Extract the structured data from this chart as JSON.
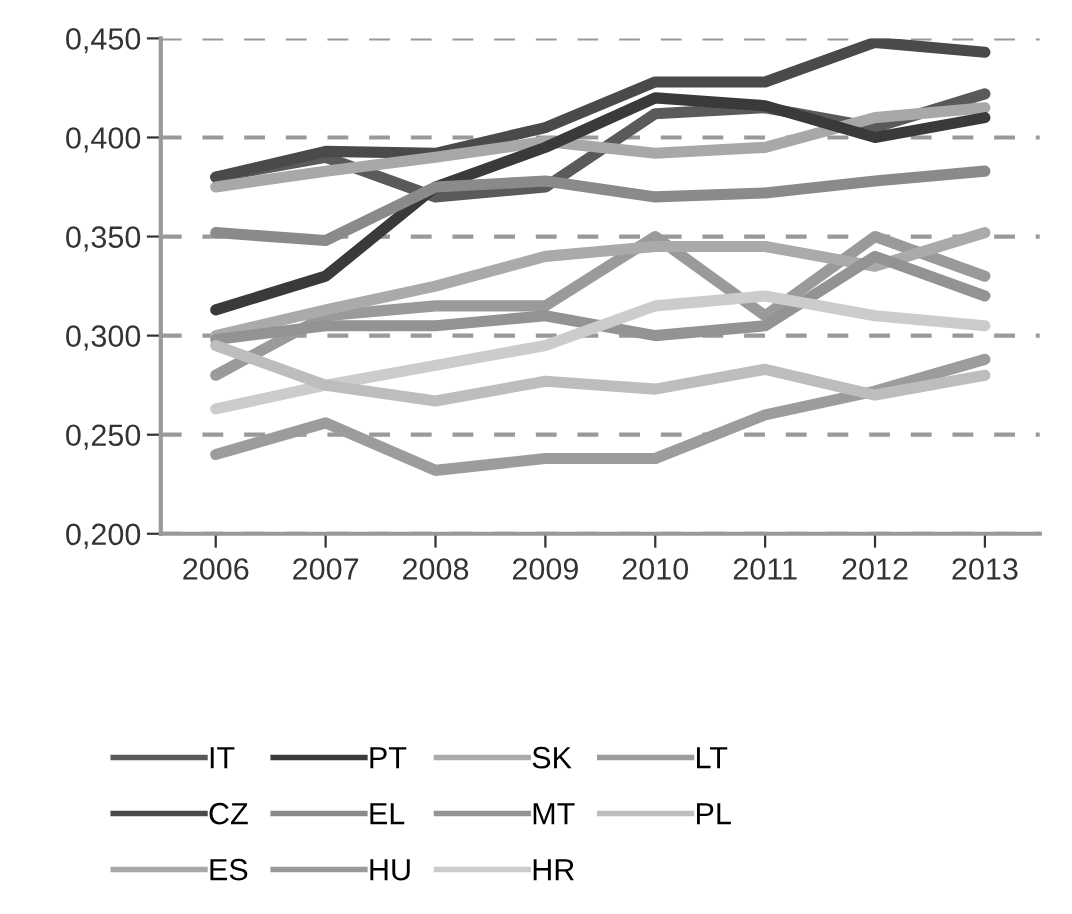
{
  "chart_data": {
    "type": "line",
    "categories": [
      "2006",
      "2007",
      "2008",
      "2009",
      "2010",
      "2011",
      "2012",
      "2013"
    ],
    "series": [
      {
        "name": "IT",
        "color": "#5a5a5a",
        "values": [
          0.38,
          0.39,
          0.37,
          0.375,
          0.412,
          0.415,
          0.405,
          0.422
        ]
      },
      {
        "name": "CZ",
        "color": "#4a4a4a",
        "values": [
          0.38,
          0.393,
          0.392,
          0.405,
          0.428,
          0.428,
          0.448,
          0.443
        ]
      },
      {
        "name": "ES",
        "color": "#a8a8a8",
        "values": [
          0.375,
          0.383,
          0.39,
          0.398,
          0.392,
          0.395,
          0.41,
          0.415
        ]
      },
      {
        "name": "PT",
        "color": "#3a3a3a",
        "values": [
          0.313,
          0.33,
          0.375,
          0.395,
          0.42,
          0.416,
          0.4,
          0.41
        ]
      },
      {
        "name": "EL",
        "color": "#8a8a8a",
        "values": [
          0.352,
          0.348,
          0.375,
          0.378,
          0.37,
          0.372,
          0.378,
          0.383
        ]
      },
      {
        "name": "HU",
        "color": "#9a9a9a",
        "values": [
          0.28,
          0.31,
          0.315,
          0.315,
          0.35,
          0.31,
          0.35,
          0.33
        ]
      },
      {
        "name": "SK",
        "color": "#aaaaaa",
        "values": [
          0.3,
          0.313,
          0.325,
          0.34,
          0.345,
          0.345,
          0.335,
          0.352
        ]
      },
      {
        "name": "MT",
        "color": "#939393",
        "values": [
          0.298,
          0.305,
          0.305,
          0.31,
          0.3,
          0.305,
          0.34,
          0.32
        ]
      },
      {
        "name": "HR",
        "color": "#cccccc",
        "values": [
          0.263,
          0.275,
          0.285,
          0.295,
          0.315,
          0.32,
          0.31,
          0.305
        ]
      },
      {
        "name": "LT",
        "color": "#9c9c9c",
        "values": [
          0.24,
          0.256,
          0.232,
          0.238,
          0.238,
          0.26,
          0.272,
          0.288
        ]
      },
      {
        "name": "PL",
        "color": "#bdbdbd",
        "values": [
          0.295,
          0.275,
          0.267,
          0.277,
          0.273,
          0.283,
          0.27,
          0.28
        ]
      }
    ],
    "ylim": [
      0.2,
      0.45
    ],
    "yticks": [
      {
        "value": 0.2,
        "label": "0,200"
      },
      {
        "value": 0.25,
        "label": "0,250"
      },
      {
        "value": 0.3,
        "label": "0,300"
      },
      {
        "value": 0.35,
        "label": "0,350"
      },
      {
        "value": 0.4,
        "label": "0,400"
      },
      {
        "value": 0.45,
        "label": "0,450"
      }
    ],
    "grid": "y",
    "legend": "bottom",
    "marker": "none",
    "line_style": "solid"
  }
}
